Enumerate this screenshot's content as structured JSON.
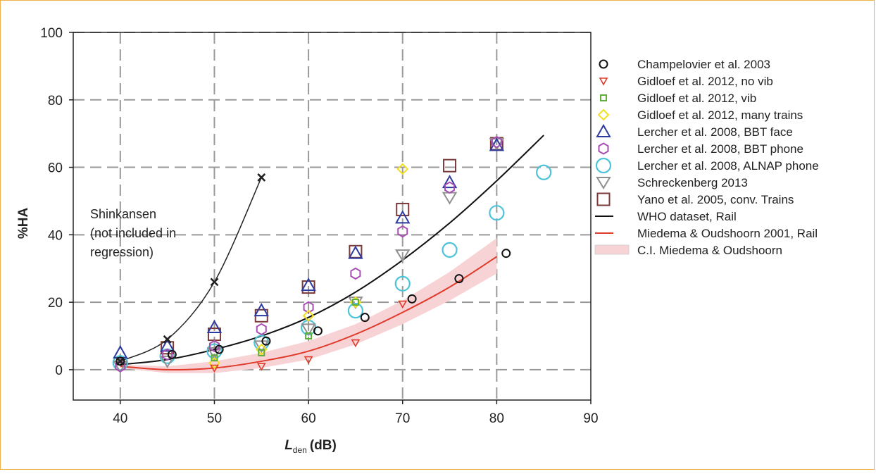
{
  "chart_data": {
    "type": "scatter",
    "xlabel": "L",
    "xlabel_sub": "den",
    "xlabel_unit": "(dB)",
    "ylabel": "%HA",
    "xlim": [
      35,
      90
    ],
    "ylim": [
      -9,
      100
    ],
    "xticks": [
      40,
      50,
      60,
      70,
      80,
      90
    ],
    "yticks": [
      0,
      20,
      40,
      60,
      80,
      100
    ],
    "grid": "dashed",
    "legend_position": "right",
    "annotation": [
      "Shinkansen",
      "(not included in",
      "regression)"
    ],
    "shinkansen": {
      "marker": "x",
      "color": "#222222",
      "points": [
        [
          40,
          2.5
        ],
        [
          45,
          9
        ],
        [
          50,
          26
        ],
        [
          55,
          57
        ]
      ]
    },
    "series": [
      {
        "name": "Champelovier et al. 2003",
        "marker": "circle-small",
        "color": "#111111",
        "points": [
          [
            40,
            2.5
          ],
          [
            45.5,
            4.5
          ],
          [
            50.5,
            6
          ],
          [
            55.5,
            8.5
          ],
          [
            61,
            11.5
          ],
          [
            66,
            15.5
          ],
          [
            71,
            21
          ],
          [
            76,
            27
          ],
          [
            81,
            34.5
          ]
        ]
      },
      {
        "name": "Gidloef et al. 2012, no vib",
        "marker": "tri-down-small",
        "color": "#e03a2a",
        "points": [
          [
            50,
            0.5
          ],
          [
            55,
            1
          ],
          [
            60,
            3
          ],
          [
            65,
            8
          ],
          [
            70,
            19.5
          ]
        ]
      },
      {
        "name": "Gidloef et al. 2012, vib",
        "marker": "square-small",
        "color": "#5fae3a",
        "points": [
          [
            50,
            3.5
          ],
          [
            55,
            5
          ],
          [
            60,
            10
          ],
          [
            65,
            20
          ]
        ]
      },
      {
        "name": "Gidloef et al. 2012, many trains",
        "marker": "diamond",
        "color": "#f0e020",
        "points": [
          [
            50,
            2
          ],
          [
            55,
            6
          ],
          [
            60,
            16
          ],
          [
            65,
            20
          ],
          [
            70,
            59.5
          ]
        ]
      },
      {
        "name": "Lercher et al. 2008, BBT face",
        "marker": "triangle",
        "color": "#2d3aa0",
        "points": [
          [
            40,
            5
          ],
          [
            45,
            7
          ],
          [
            50,
            12.5
          ],
          [
            55,
            17.5
          ],
          [
            60,
            25
          ],
          [
            65,
            34.5
          ],
          [
            70,
            45
          ],
          [
            75,
            55.5
          ],
          [
            80,
            66.5
          ]
        ]
      },
      {
        "name": "Lercher et al. 2008, BBT phone",
        "marker": "hexagon",
        "color": "#a84db3",
        "points": [
          [
            40,
            1
          ],
          [
            45,
            4.5
          ],
          [
            50,
            7
          ],
          [
            55,
            12
          ],
          [
            60,
            18.5
          ],
          [
            65,
            28.5
          ],
          [
            70,
            41
          ],
          [
            75,
            54
          ],
          [
            80,
            67.5
          ]
        ]
      },
      {
        "name": "Lercher et al. 2008, ALNAP phone",
        "marker": "circle-large",
        "color": "#4dc3d9",
        "points": [
          [
            40,
            2
          ],
          [
            45,
            4
          ],
          [
            50,
            5.5
          ],
          [
            55,
            8
          ],
          [
            60,
            12.5
          ],
          [
            65,
            17.5
          ],
          [
            70,
            25.5
          ],
          [
            75,
            35.5
          ],
          [
            80,
            46.5
          ],
          [
            85,
            58.5
          ]
        ]
      },
      {
        "name": "Schreckenberg 2013",
        "marker": "tri-down",
        "color": "#909090",
        "points": [
          [
            40,
            1
          ],
          [
            45,
            2.5
          ],
          [
            50,
            5
          ],
          [
            55,
            7
          ],
          [
            60,
            12
          ],
          [
            65,
            20
          ],
          [
            70,
            34
          ],
          [
            75,
            51
          ],
          [
            80,
            67
          ]
        ]
      },
      {
        "name": "Yano et al. 2005, conv. Trains",
        "marker": "square",
        "color": "#7a3a3a",
        "points": [
          [
            45,
            6.5
          ],
          [
            50,
            10.5
          ],
          [
            55,
            16
          ],
          [
            60,
            24.5
          ],
          [
            65,
            35
          ],
          [
            70,
            47.5
          ],
          [
            75,
            60.5
          ],
          [
            80,
            67
          ]
        ]
      },
      {
        "name": "WHO dataset, Rail",
        "marker": "line",
        "color": "#111111",
        "points": [
          [
            40,
            1.5
          ],
          [
            45,
            3
          ],
          [
            50,
            6
          ],
          [
            55,
            10
          ],
          [
            60,
            15.5
          ],
          [
            65,
            23
          ],
          [
            70,
            32.5
          ],
          [
            75,
            43.5
          ],
          [
            80,
            56
          ],
          [
            85,
            69.5
          ]
        ]
      },
      {
        "name": "Miedema & Oudshoorn 2001, Rail",
        "marker": "line",
        "color": "#e03a2a",
        "points": [
          [
            40,
            1
          ],
          [
            45,
            0
          ],
          [
            50,
            0.5
          ],
          [
            55,
            2.5
          ],
          [
            60,
            5.5
          ],
          [
            65,
            10.5
          ],
          [
            70,
            17
          ],
          [
            75,
            24.5
          ],
          [
            80,
            33.5
          ]
        ]
      },
      {
        "name": "C.I. Miedema & Oudshoorn",
        "marker": "band",
        "color": "#f7d3d6",
        "upper": [
          [
            40,
            1.5
          ],
          [
            45,
            1
          ],
          [
            50,
            2.5
          ],
          [
            55,
            5
          ],
          [
            60,
            8.5
          ],
          [
            65,
            13.5
          ],
          [
            70,
            20.5
          ],
          [
            75,
            29
          ],
          [
            80,
            39
          ]
        ],
        "lower": [
          [
            40,
            0.5
          ],
          [
            45,
            -1
          ],
          [
            50,
            -1
          ],
          [
            55,
            0.5
          ],
          [
            60,
            3
          ],
          [
            65,
            7.5
          ],
          [
            70,
            13.5
          ],
          [
            75,
            20.5
          ],
          [
            80,
            28.5
          ]
        ]
      }
    ]
  }
}
